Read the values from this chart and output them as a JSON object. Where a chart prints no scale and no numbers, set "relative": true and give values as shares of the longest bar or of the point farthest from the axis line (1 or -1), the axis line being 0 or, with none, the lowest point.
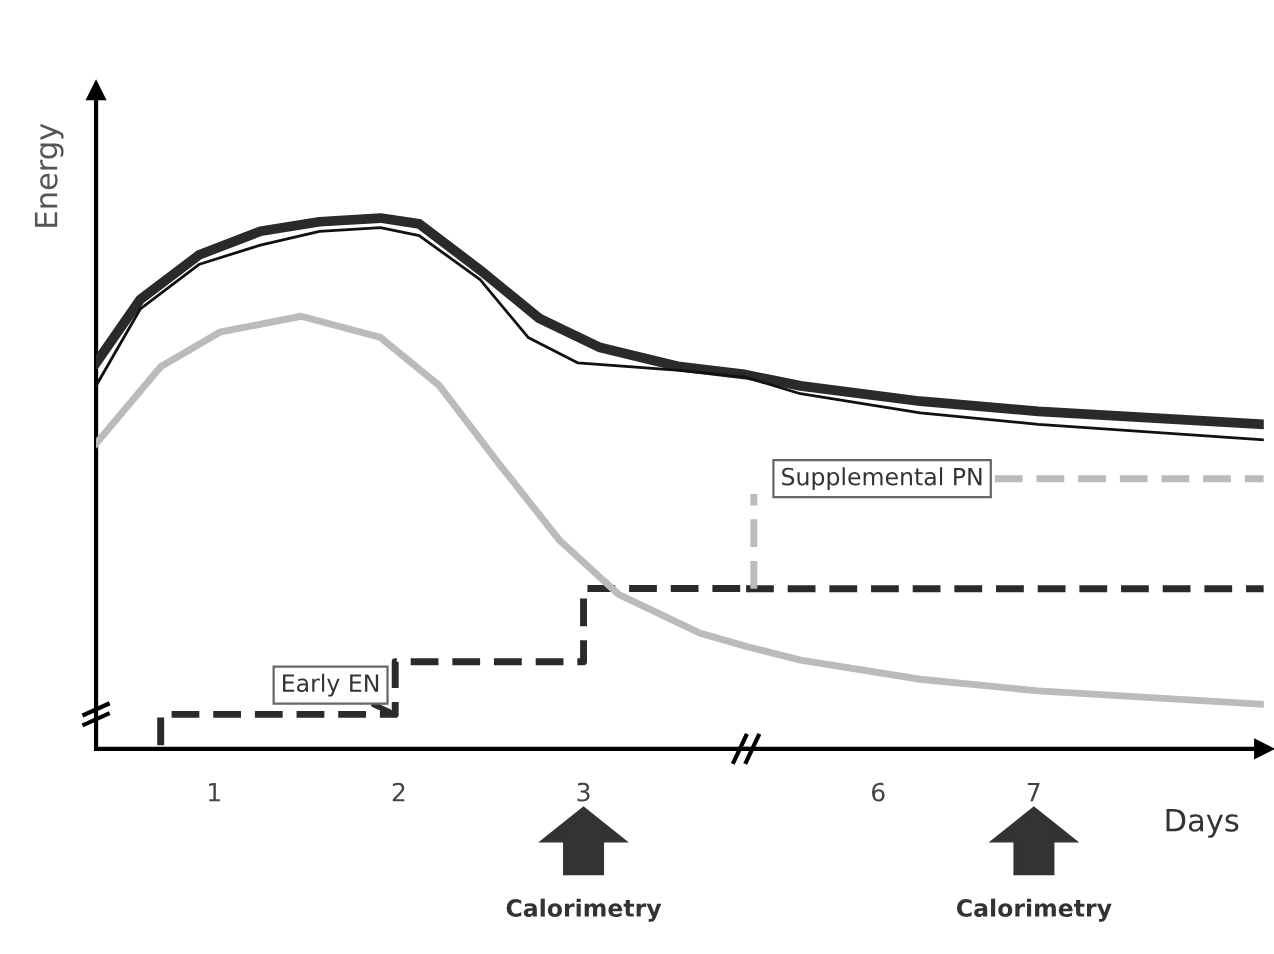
{
  "chart_data": [
    {
      "type": "line",
      "relative": true,
      "ylabel": "Energy",
      "xlim": [
        0.36,
        3.88
      ],
      "xticks": [
        1,
        2,
        3
      ],
      "tick_labels": "x",
      "grid": false,
      "legend": false,
      "marker": "none",
      "series": [
        {
          "color": "#2a2a2a",
          "x": [
            0.36,
            0.6,
            0.92,
            1.25,
            1.57,
            1.9,
            2.11,
            2.44,
            2.76,
            3.09,
            3.52,
            3.88
          ],
          "values": [
            0.727,
            0.847,
            0.931,
            0.975,
            0.993,
            1,
            0.989,
            0.902,
            0.811,
            0.756,
            0.72,
            0.705
          ]
        },
        {
          "color": "#111111",
          "x": [
            0.36,
            0.6,
            0.92,
            1.25,
            1.57,
            1.9,
            2.11,
            2.44,
            2.7,
            2.97,
            3.52,
            3.88
          ],
          "values": [
            0.684,
            0.829,
            0.913,
            0.949,
            0.975,
            0.982,
            0.967,
            0.884,
            0.775,
            0.727,
            0.713,
            0.7
          ]
        },
        {
          "color": "#bbbbbb",
          "x": [
            0.36,
            0.71,
            1.03,
            1.47,
            1.9,
            2.22,
            2.54,
            2.87,
            3.19,
            3.63,
            3.88
          ],
          "values": [
            0.575,
            0.72,
            0.785,
            0.815,
            0.775,
            0.684,
            0.538,
            0.393,
            0.291,
            0.218,
            0.193
          ]
        },
        {
          "color": "#2a2a2a",
          "line_style": "dashed",
          "x": [
            0.71,
            0.71,
            1.98,
            1.98,
            3.0,
            3.0,
            3.88
          ],
          "values": [
            0.007,
            0.065,
            0.065,
            0.164,
            0.164,
            0.302,
            0.302
          ]
        }
      ],
      "annotations": [
        {
          "text": "Early EN",
          "x": 1.98,
          "y": 0.065
        },
        "Calorimetry"
      ]
    },
    {
      "type": "line",
      "relative": true,
      "xlabel": "Days",
      "xlim": [
        5.15,
        8.48
      ],
      "xticks": [
        6,
        7
      ],
      "tick_labels": "x",
      "grid": false,
      "legend": false,
      "marker": "none",
      "series": [
        {
          "color": "#2a2a2a",
          "x": [
            5.15,
            5.5,
            6.27,
            7.03,
            8.48
          ],
          "values": [
            1,
            0.97,
            0.929,
            0.902,
            0.867
          ]
        },
        {
          "color": "#111111",
          "x": [
            5.15,
            5.5,
            6.27,
            7.03,
            8.48
          ],
          "values": [
            0.993,
            0.949,
            0.898,
            0.867,
            0.826
          ]
        },
        {
          "color": "#bbbbbb",
          "x": [
            5.15,
            5.5,
            6.27,
            7.03,
            8.48
          ],
          "values": [
            0.274,
            0.237,
            0.186,
            0.155,
            0.119
          ]
        },
        {
          "color": "#2a2a2a",
          "line_style": "dashed",
          "x": [
            5.15,
            8.48
          ],
          "values": [
            0.428,
            0.428
          ]
        },
        {
          "color": "#bbbbbb",
          "line_style": "dashed",
          "x": [
            5.2,
            5.2,
            null,
            6.75,
            8.48
          ],
          "values": [
            0.428,
            0.681,
            null,
            0.722,
            0.722
          ]
        }
      ],
      "annotations": [
        {
          "text": "Supplemental PN",
          "x": 6.75,
          "y": 0.722
        },
        "Calorimetry"
      ]
    }
  ]
}
